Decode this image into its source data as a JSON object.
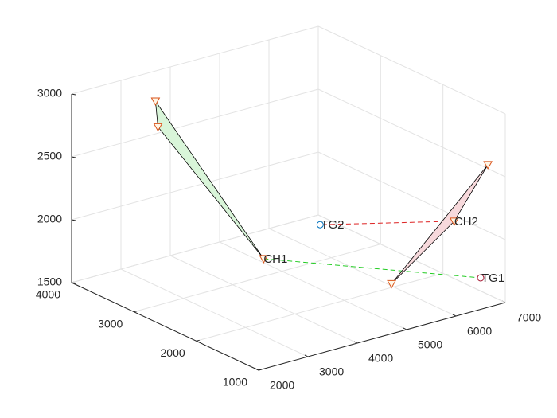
{
  "chart_data": {
    "type": "scatter3d",
    "xlim": [
      2000,
      7000
    ],
    "xticks": [
      2000,
      3000,
      4000,
      5000,
      6000,
      7000
    ],
    "ylim": [
      1000,
      4000
    ],
    "yticks": [
      1000,
      2000,
      3000,
      4000
    ],
    "zlim": [
      1500,
      3000
    ],
    "zticks": [
      1500,
      2000,
      2500,
      3000
    ],
    "grid": true,
    "clusters": [
      {
        "head": {
          "label": "CH1",
          "x": 4250,
          "y": 2700,
          "z": 1750
        },
        "uavs": {
          "x": [
            3700,
            3750
          ],
          "y": [
            4000,
            4000
          ],
          "z": [
            2760,
            2550
          ]
        },
        "fill": "#d9f5d9",
        "target": {
          "label": "TG1",
          "x": 6500,
          "y": 1000,
          "z": 1750,
          "color": "#a2142f"
        },
        "link_color": "#22cc22"
      },
      {
        "head": {
          "label": "CH2",
          "x": 6850,
          "y": 1700,
          "z": 2000
        },
        "uavs": {
          "x": [
            6900,
            5200
          ],
          "y": [
            1200,
            1400
          ],
          "z": [
            2560,
            1750
          ]
        },
        "fill": "#f7d9dc",
        "target": {
          "label": "TG2",
          "x": 5900,
          "y": 3100,
          "z": 1750,
          "color": "#0072bd"
        },
        "link_color": "#dd2222"
      }
    ],
    "marker_color": "#d95319"
  }
}
